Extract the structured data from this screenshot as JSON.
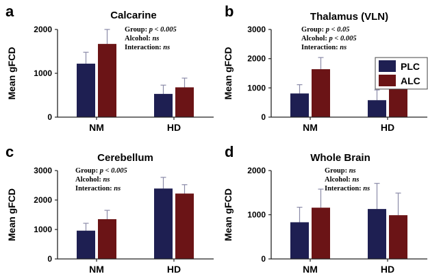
{
  "colors": {
    "PLC": "#1e1f52",
    "ALC": "#6b1416",
    "axis": "#222222",
    "error": "#8a8aa8"
  },
  "legend": [
    {
      "key": "PLC",
      "label": "PLC"
    },
    {
      "key": "ALC",
      "label": "ALC"
    }
  ],
  "chart_data": [
    {
      "letter": "a",
      "type": "bar",
      "title": "Calcarine",
      "ylabel": "Mean gFCD",
      "categories": [
        "NM",
        "HD"
      ],
      "ylim": [
        0,
        2000
      ],
      "yticks": [
        0,
        1000,
        2000
      ],
      "series": [
        {
          "name": "PLC",
          "values": [
            1220,
            530
          ],
          "errors": [
            260,
            200
          ]
        },
        {
          "name": "ALC",
          "values": [
            1670,
            680
          ],
          "errors": [
            330,
            210
          ]
        }
      ],
      "stats": [
        {
          "label": "Group:",
          "value": "p < 0.005"
        },
        {
          "label": "Alcohol:",
          "value": "ns"
        },
        {
          "label": "Interaction:",
          "value": "ns"
        }
      ]
    },
    {
      "letter": "b",
      "type": "bar",
      "title": "Thalamus (VLN)",
      "ylabel": "Mean gFCD",
      "categories": [
        "NM",
        "HD"
      ],
      "ylim": [
        0,
        3000
      ],
      "yticks": [
        0,
        1000,
        2000,
        3000
      ],
      "series": [
        {
          "name": "PLC",
          "values": [
            810,
            580
          ],
          "errors": [
            300,
            350
          ]
        },
        {
          "name": "ALC",
          "values": [
            1640,
            1210
          ],
          "errors": [
            400,
            450
          ]
        }
      ],
      "stats": [
        {
          "label": "Group:",
          "value": "p < 0.05"
        },
        {
          "label": "Alcohol:",
          "value": "p < 0.005"
        },
        {
          "label": "Interaction:",
          "value": "ns"
        }
      ]
    },
    {
      "letter": "c",
      "type": "bar",
      "title": "Cerebellum",
      "ylabel": "Mean gFCD",
      "categories": [
        "NM",
        "HD"
      ],
      "ylim": [
        0,
        3000
      ],
      "yticks": [
        0,
        1000,
        2000,
        3000
      ],
      "series": [
        {
          "name": "PLC",
          "values": [
            960,
            2390
          ],
          "errors": [
            250,
            380
          ]
        },
        {
          "name": "ALC",
          "values": [
            1350,
            2220
          ],
          "errors": [
            300,
            300
          ]
        }
      ],
      "stats": [
        {
          "label": "Group:",
          "value": "p < 0.005"
        },
        {
          "label": "Alcohol:",
          "value": "ns"
        },
        {
          "label": "Interaction:",
          "value": "ns"
        }
      ]
    },
    {
      "letter": "d",
      "type": "bar",
      "title": "Whole Brain",
      "ylabel": "Mean gFCD",
      "categories": [
        "NM",
        "HD"
      ],
      "ylim": [
        0,
        2000
      ],
      "yticks": [
        0,
        1000,
        2000
      ],
      "series": [
        {
          "name": "PLC",
          "values": [
            830,
            1130
          ],
          "errors": [
            340,
            580
          ]
        },
        {
          "name": "ALC",
          "values": [
            1160,
            990
          ],
          "errors": [
            420,
            500
          ]
        }
      ],
      "stats": [
        {
          "label": "Group:",
          "value": "ns"
        },
        {
          "label": "Alcohol:",
          "value": "ns"
        },
        {
          "label": "Interaction:",
          "value": "ns"
        }
      ]
    }
  ]
}
